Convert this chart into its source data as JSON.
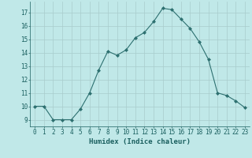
{
  "x": [
    0,
    1,
    2,
    3,
    4,
    5,
    6,
    7,
    8,
    9,
    10,
    11,
    12,
    13,
    14,
    15,
    16,
    17,
    18,
    19,
    20,
    21,
    22,
    23
  ],
  "y": [
    10,
    10,
    9,
    9,
    9,
    9.8,
    11,
    12.7,
    14.1,
    13.8,
    14.2,
    15.1,
    15.5,
    16.3,
    17.3,
    17.2,
    16.5,
    15.8,
    14.8,
    13.5,
    11.0,
    10.8,
    10.4,
    9.9
  ],
  "line_color": "#2d7070",
  "marker": "D",
  "marker_size": 2.0,
  "bg_color": "#c0e8e8",
  "grid_color": "#a8cccc",
  "xlabel": "Humidex (Indice chaleur)",
  "xlabel_fontsize": 6.5,
  "xlabel_color": "#1a5f5f",
  "tick_color": "#1a5f5f",
  "tick_fontsize": 5.5,
  "ylim": [
    8.5,
    17.8
  ],
  "yticks": [
    9,
    10,
    11,
    12,
    13,
    14,
    15,
    16,
    17
  ],
  "xlim": [
    -0.5,
    23.5
  ],
  "xticks": [
    0,
    1,
    2,
    3,
    4,
    5,
    6,
    7,
    8,
    9,
    10,
    11,
    12,
    13,
    14,
    15,
    16,
    17,
    18,
    19,
    20,
    21,
    22,
    23
  ]
}
